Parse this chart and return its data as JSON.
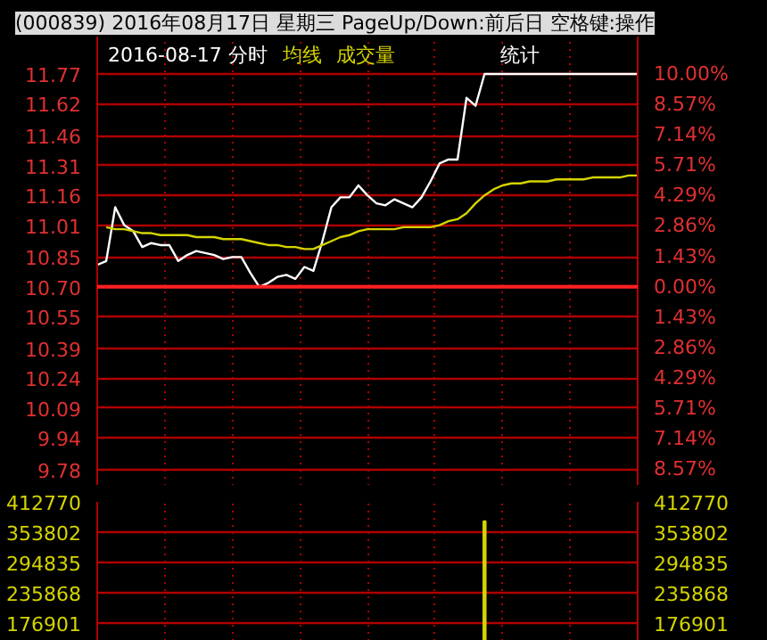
{
  "chart_data": [
    {
      "type": "line",
      "title": "(000839) 2016年08月17日 星期三 PageUp/Down:前后日 空格键:操作",
      "subtitle": "2016-08-17 分时",
      "annotations": [
        "统计"
      ],
      "categories": [
        null,
        null,
        null,
        null,
        null,
        null,
        null,
        null,
        null,
        null,
        null,
        null,
        null,
        null,
        null,
        null,
        null,
        null,
        null,
        null,
        null,
        null,
        null,
        null,
        null,
        null,
        null,
        null,
        null,
        null,
        null,
        null,
        null,
        null,
        null,
        null,
        null,
        null,
        null,
        null,
        null,
        null,
        null,
        null,
        null,
        null,
        null,
        null,
        null,
        null,
        null,
        null,
        null,
        null,
        null,
        null,
        null,
        null,
        null,
        null,
        null
      ],
      "series": [
        {
          "color": "#ffffff",
          "values": [
            10.81,
            10.83,
            11.1,
            11.01,
            10.98,
            10.9,
            10.92,
            10.91,
            10.91,
            10.83,
            10.86,
            10.88,
            10.87,
            10.86,
            10.84,
            10.85,
            10.85,
            10.77,
            10.7,
            10.72,
            10.75,
            10.76,
            10.74,
            10.8,
            10.78,
            10.93,
            11.1,
            11.15,
            11.15,
            11.21,
            11.16,
            11.12,
            11.11,
            11.14,
            11.12,
            11.1,
            11.15,
            11.23,
            11.32,
            11.34,
            11.34,
            11.65,
            11.61,
            11.77,
            11.77,
            11.77,
            11.77,
            11.77,
            11.77,
            11.77,
            11.77,
            11.77,
            11.77,
            11.77,
            11.77,
            11.77,
            11.77,
            11.77,
            11.77,
            11.77,
            11.77
          ]
        },
        {
          "name": "均线",
          "color": "#d4d400",
          "values": [
            null,
            11.0,
            10.99,
            10.99,
            10.98,
            10.97,
            10.97,
            10.96,
            10.96,
            10.96,
            10.96,
            10.95,
            10.95,
            10.95,
            10.94,
            10.94,
            10.94,
            10.93,
            10.92,
            10.91,
            10.91,
            10.9,
            10.9,
            10.89,
            10.89,
            10.91,
            10.93,
            10.95,
            10.96,
            10.98,
            10.99,
            10.99,
            10.99,
            10.99,
            11.0,
            11.0,
            11.0,
            11.0,
            11.01,
            11.03,
            11.04,
            11.07,
            11.12,
            11.16,
            11.19,
            11.21,
            11.22,
            11.22,
            11.23,
            11.23,
            11.23,
            11.24,
            11.24,
            11.24,
            11.24,
            11.25,
            11.25,
            11.25,
            11.25,
            11.26,
            11.26
          ]
        }
      ],
      "ylim": [
        9.7,
        11.77
      ],
      "yticks": [
        {
          "value": 11.77,
          "label": "11.77"
        },
        {
          "value": 11.62,
          "label": "11.62"
        },
        {
          "value": 11.46,
          "label": "11.46"
        },
        {
          "value": 11.31,
          "label": "11.31"
        },
        {
          "value": 11.16,
          "label": "11.16"
        },
        {
          "value": 11.01,
          "label": "11.01"
        },
        {
          "value": 10.85,
          "label": "10.85"
        },
        {
          "value": 10.7,
          "label": "10.70"
        },
        {
          "value": 10.55,
          "label": "10.55"
        },
        {
          "value": 10.39,
          "label": "10.39"
        },
        {
          "value": 10.24,
          "label": "10.24"
        },
        {
          "value": 10.09,
          "label": "10.09"
        },
        {
          "value": 9.94,
          "label": "9.94"
        },
        {
          "value": 9.78,
          "label": "9.78"
        }
      ],
      "y2lim": [
        -9.35,
        10.0
      ],
      "y2ticks": [
        {
          "value": 10.0,
          "label": "10.00%"
        },
        {
          "value": 8.57,
          "label": "8.57%"
        },
        {
          "value": 7.14,
          "label": "7.14%"
        },
        {
          "value": 5.71,
          "label": "5.71%"
        },
        {
          "value": 4.29,
          "label": "4.29%"
        },
        {
          "value": 2.86,
          "label": "2.86%"
        },
        {
          "value": 1.43,
          "label": "1.43%"
        },
        {
          "value": 0,
          "label": "0.00%"
        },
        {
          "value": -1.43,
          "label": "1.43%"
        },
        {
          "value": -2.86,
          "label": "2.86%"
        },
        {
          "value": -4.29,
          "label": "4.29%"
        },
        {
          "value": -5.71,
          "label": "5.71%"
        },
        {
          "value": -7.14,
          "label": "7.14%"
        },
        {
          "value": -8.57,
          "label": "8.57%"
        }
      ],
      "ref_lines": [
        {
          "axis": "y",
          "value": 10.7,
          "color": "#ff2020"
        }
      ],
      "grid": true,
      "tick_labels": "y"
    },
    {
      "type": "bar",
      "categories": [
        null,
        null,
        null,
        null,
        null,
        null,
        null,
        null,
        null,
        null,
        null,
        null,
        null,
        null,
        null,
        null,
        null,
        null,
        null,
        null,
        null,
        null,
        null,
        null,
        null,
        null,
        null,
        null,
        null,
        null,
        null,
        null,
        null,
        null,
        null,
        null,
        null,
        null,
        null,
        null,
        null,
        null,
        null,
        null,
        null,
        null,
        null,
        null,
        null,
        null,
        null,
        null,
        null,
        null,
        null,
        null,
        null,
        null,
        null,
        null,
        null
      ],
      "series": [
        {
          "name": "成交量",
          "color": "#d4d400",
          "values": [
            null,
            null,
            null,
            null,
            null,
            null,
            null,
            null,
            null,
            null,
            null,
            null,
            null,
            null,
            null,
            null,
            null,
            null,
            null,
            null,
            null,
            null,
            null,
            null,
            null,
            null,
            null,
            null,
            null,
            null,
            null,
            null,
            null,
            null,
            null,
            null,
            null,
            null,
            null,
            null,
            null,
            null,
            null,
            375000,
            null,
            null,
            null,
            null,
            null,
            null,
            null,
            null,
            null,
            null,
            null,
            null,
            null,
            null,
            null,
            null,
            null
          ]
        }
      ],
      "ylim": [
        142000,
        412770
      ],
      "yticks": [
        412770,
        353802,
        294835,
        235868,
        176901
      ],
      "y2lim": [
        142000,
        412770
      ],
      "y2ticks": [
        412770,
        353802,
        294835,
        235868,
        176901
      ],
      "grid": true,
      "tick_labels": "y"
    }
  ]
}
